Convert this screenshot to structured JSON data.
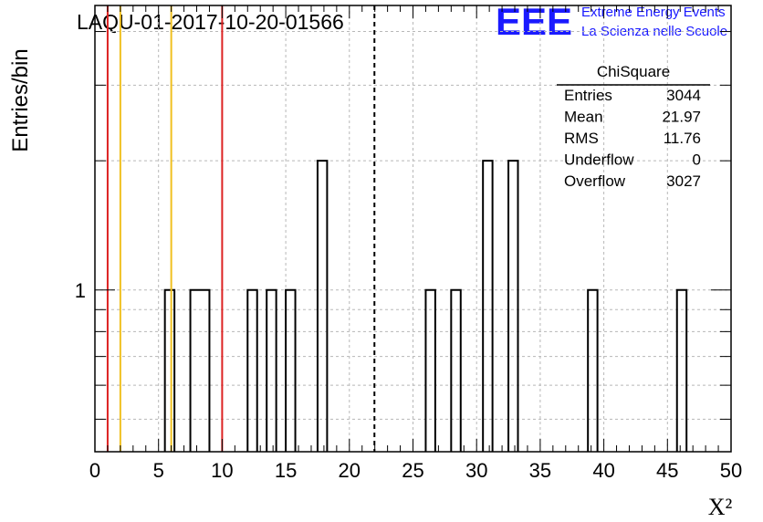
{
  "title": "LAQU-01-2017-10-20-01566",
  "logo": {
    "text": "EEE",
    "line1": "Extreme Energy Events",
    "line2": "La Scienza nelle Scuole",
    "color": "#1a1aff"
  },
  "stats": {
    "name": "ChiSquare",
    "rows": [
      {
        "label": "Entries",
        "value": "3044"
      },
      {
        "label": "Mean",
        "value": "21.97"
      },
      {
        "label": "RMS",
        "value": "11.76"
      },
      {
        "label": "Underflow",
        "value": "0"
      },
      {
        "label": "Overflow",
        "value": "3027"
      }
    ]
  },
  "chart_data": {
    "type": "bar",
    "title": "LAQU-01-2017-10-20-01566",
    "xlabel": "X²",
    "ylabel": "Entries/bin",
    "xlim": [
      0,
      50
    ],
    "ylim": [
      0.42,
      4.6
    ],
    "yscale": "log",
    "grid": true,
    "bin_width": 0.75,
    "xticks": [
      "0",
      "5",
      "10",
      "15",
      "20",
      "25",
      "30",
      "35",
      "40",
      "45",
      "50"
    ],
    "ytick_labels": [
      {
        "value": 1,
        "label": "1"
      }
    ],
    "bins": [
      {
        "x0": 5.5,
        "x1": 6.25,
        "count": 1
      },
      {
        "x0": 7.5,
        "x1": 9.0,
        "count": 1
      },
      {
        "x0": 12.0,
        "x1": 12.75,
        "count": 1
      },
      {
        "x0": 13.5,
        "x1": 14.25,
        "count": 1
      },
      {
        "x0": 15.0,
        "x1": 15.75,
        "count": 1
      },
      {
        "x0": 17.5,
        "x1": 18.25,
        "count": 2
      },
      {
        "x0": 26.0,
        "x1": 26.75,
        "count": 1
      },
      {
        "x0": 28.0,
        "x1": 28.75,
        "count": 1
      },
      {
        "x0": 30.5,
        "x1": 31.25,
        "count": 2
      },
      {
        "x0": 32.5,
        "x1": 33.25,
        "count": 2
      },
      {
        "x0": 38.75,
        "x1": 39.5,
        "count": 1
      },
      {
        "x0": 45.75,
        "x1": 46.5,
        "count": 1
      }
    ],
    "vertical_lines": [
      {
        "x": 1.0,
        "color": "#dd2222",
        "style": "solid"
      },
      {
        "x": 2.0,
        "color": "#f0c020",
        "style": "solid"
      },
      {
        "x": 6.0,
        "color": "#f0c020",
        "style": "solid"
      },
      {
        "x": 10.0,
        "color": "#dd2222",
        "style": "solid"
      },
      {
        "x": 21.97,
        "color": "#000000",
        "style": "dashed"
      }
    ]
  }
}
